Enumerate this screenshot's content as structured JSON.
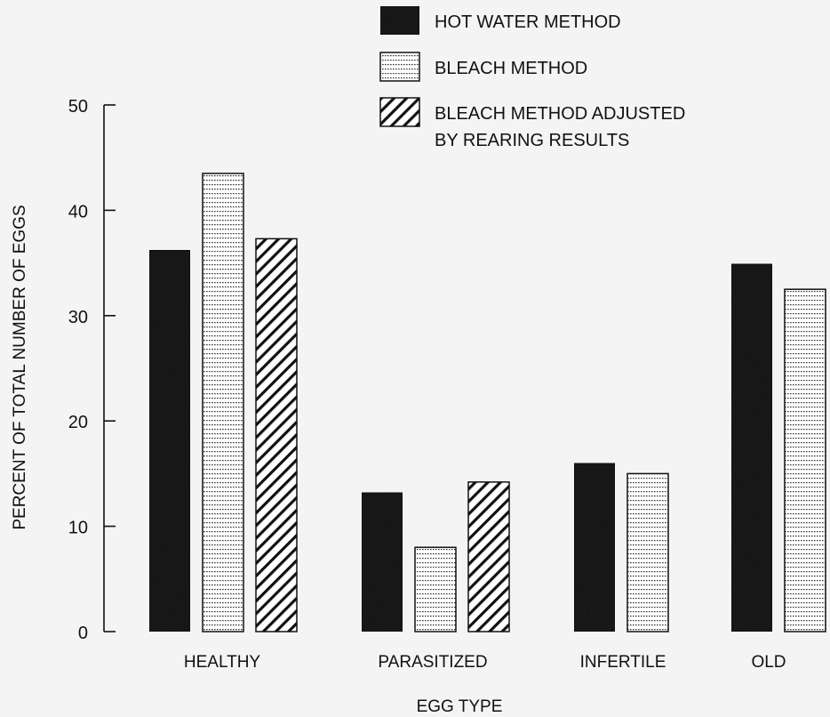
{
  "chart_data": {
    "type": "bar",
    "title": "",
    "xlabel": "EGG TYPE",
    "ylabel": "PERCENT OF TOTAL NUMBER OF EGGS",
    "ylim": [
      0,
      50
    ],
    "yticks": [
      0,
      10,
      20,
      30,
      40,
      50
    ],
    "grid": false,
    "legend_position": "top-center",
    "categories": [
      "HEALTHY",
      "PARASITIZED",
      "INFERTILE",
      "OLD"
    ],
    "series": [
      {
        "name": "HOT WATER METHOD",
        "pattern": "solid",
        "color": "#1a1a1a",
        "values": [
          36.2,
          13.2,
          16.0,
          34.9
        ]
      },
      {
        "name": "BLEACH METHOD",
        "pattern": "dots",
        "color": "#ffffff",
        "values": [
          43.5,
          8.0,
          15.0,
          32.5
        ]
      },
      {
        "name": "BLEACH METHOD ADJUSTED BY REARING RESULTS",
        "pattern": "diagonal-hatch",
        "color": "#ffffff",
        "values": [
          37.3,
          14.2,
          null,
          null
        ]
      }
    ]
  },
  "legend": {
    "items": [
      {
        "lines": [
          "HOT WATER METHOD"
        ]
      },
      {
        "lines": [
          "BLEACH METHOD"
        ]
      },
      {
        "lines": [
          "BLEACH METHOD ADJUSTED",
          "BY REARING RESULTS"
        ]
      }
    ]
  }
}
